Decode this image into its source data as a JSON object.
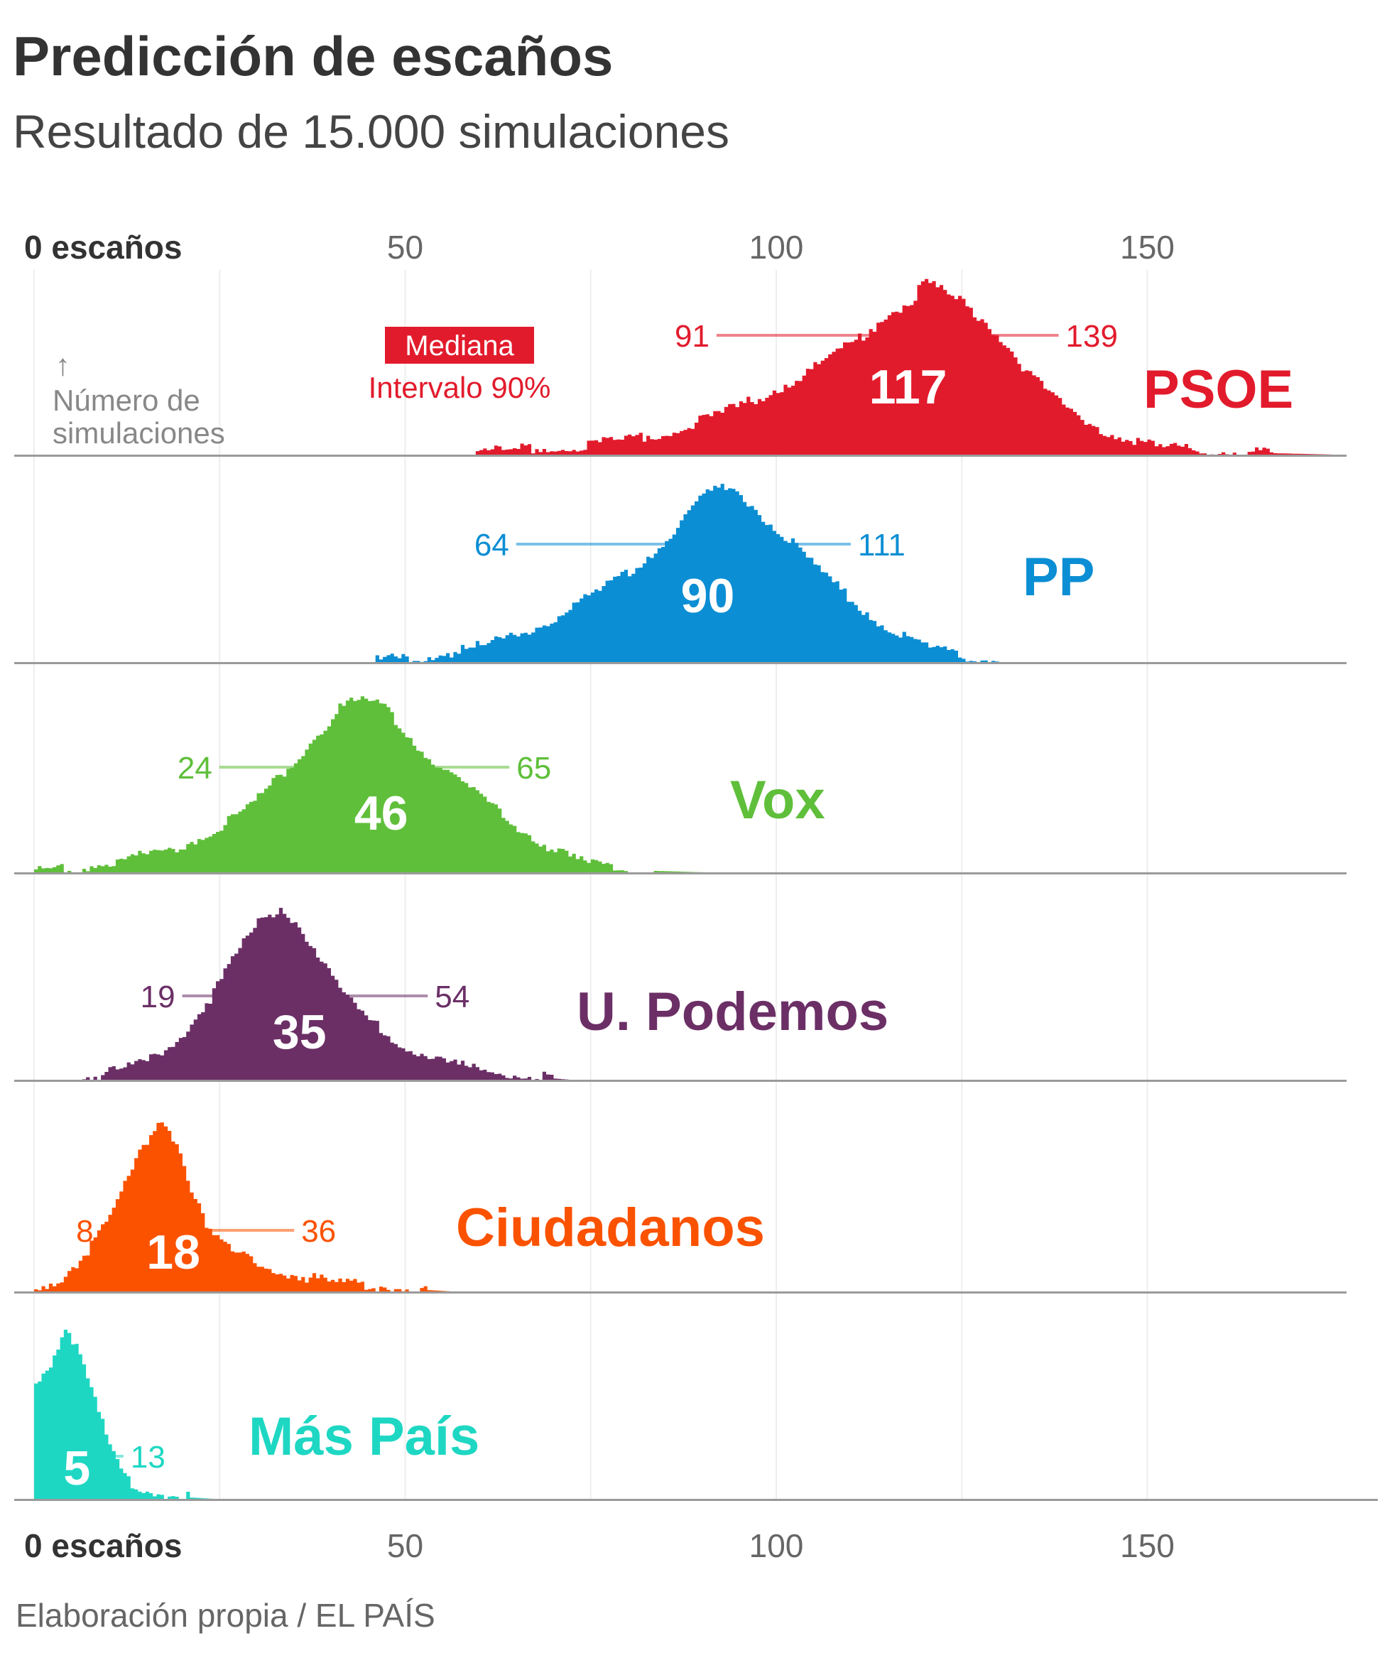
{
  "title": "Predicción de escaños",
  "subtitle": "Resultado de 15.000 simulaciones",
  "source": "Elaboración propia / EL PAÍS",
  "axis": {
    "zero_label": "0 escaños",
    "ticks": [
      "50",
      "100",
      "150"
    ],
    "tick_values": [
      50,
      100,
      150
    ],
    "y_note_arrow": "↑",
    "y_note_line1": "Número de",
    "y_note_line2": "simulaciones"
  },
  "legend": {
    "median_label": "Mediana",
    "interval_label": "Intervalo 90%",
    "color": "#e21b2c"
  },
  "chart_data": {
    "type": "histogram",
    "x_unit": "escaños",
    "xlim": [
      0,
      180
    ],
    "grid": true,
    "series": [
      {
        "name": "PSOE",
        "color": "#e21b2c",
        "median": 117,
        "interval": [
          91,
          139
        ],
        "median_label": "117",
        "low_label": "91",
        "high_label": "139",
        "range": [
          56,
          175
        ],
        "peak": 120,
        "peak_height": 1.0,
        "density": [
          [
            56,
            0.01
          ],
          [
            60,
            0.02
          ],
          [
            65,
            0.03
          ],
          [
            70,
            0.04
          ],
          [
            75,
            0.06
          ],
          [
            80,
            0.09
          ],
          [
            85,
            0.13
          ],
          [
            90,
            0.2
          ],
          [
            95,
            0.28
          ],
          [
            100,
            0.38
          ],
          [
            105,
            0.5
          ],
          [
            110,
            0.64
          ],
          [
            113,
            0.74
          ],
          [
            115,
            0.82
          ],
          [
            118,
            0.88
          ],
          [
            120,
            1.0
          ],
          [
            122,
            0.94
          ],
          [
            125,
            0.87
          ],
          [
            128,
            0.76
          ],
          [
            131,
            0.62
          ],
          [
            134,
            0.46
          ],
          [
            137,
            0.33
          ],
          [
            140,
            0.23
          ],
          [
            144,
            0.14
          ],
          [
            148,
            0.07
          ],
          [
            152,
            0.04
          ],
          [
            158,
            0.02
          ],
          [
            165,
            0.01
          ],
          [
            175,
            0.0
          ]
        ]
      },
      {
        "name": "PP",
        "color": "#0b8ed4",
        "median": 90,
        "interval": [
          64,
          111
        ],
        "median_label": "90",
        "low_label": "64",
        "high_label": "111",
        "range": [
          46,
          130
        ],
        "peak": 92,
        "peak_height": 1.0,
        "density": [
          [
            46,
            0.01
          ],
          [
            50,
            0.02
          ],
          [
            55,
            0.05
          ],
          [
            60,
            0.09
          ],
          [
            65,
            0.16
          ],
          [
            70,
            0.26
          ],
          [
            75,
            0.38
          ],
          [
            80,
            0.52
          ],
          [
            84,
            0.66
          ],
          [
            87,
            0.82
          ],
          [
            90,
            0.96
          ],
          [
            92,
            1.0
          ],
          [
            95,
            0.96
          ],
          [
            98,
            0.84
          ],
          [
            101,
            0.72
          ],
          [
            104,
            0.6
          ],
          [
            107,
            0.47
          ],
          [
            110,
            0.36
          ],
          [
            113,
            0.25
          ],
          [
            116,
            0.16
          ],
          [
            120,
            0.08
          ],
          [
            124,
            0.04
          ],
          [
            130,
            0.0
          ]
        ]
      },
      {
        "name": "Vox",
        "color": "#5fbf3a",
        "median": 46,
        "interval": [
          24,
          65
        ],
        "median_label": "46",
        "low_label": "24",
        "high_label": "65",
        "range": [
          0,
          90
        ],
        "peak": 44,
        "peak_height": 1.0,
        "density": [
          [
            0,
            0.01
          ],
          [
            5,
            0.02
          ],
          [
            10,
            0.05
          ],
          [
            15,
            0.1
          ],
          [
            20,
            0.16
          ],
          [
            25,
            0.26
          ],
          [
            30,
            0.42
          ],
          [
            35,
            0.64
          ],
          [
            38,
            0.8
          ],
          [
            41,
            0.94
          ],
          [
            44,
            1.0
          ],
          [
            47,
            0.94
          ],
          [
            50,
            0.8
          ],
          [
            53,
            0.66
          ],
          [
            56,
            0.56
          ],
          [
            59,
            0.46
          ],
          [
            62,
            0.36
          ],
          [
            65,
            0.26
          ],
          [
            68,
            0.17
          ],
          [
            72,
            0.08
          ],
          [
            76,
            0.03
          ],
          [
            82,
            0.01
          ],
          [
            90,
            0.0
          ]
        ]
      },
      {
        "name": "U. Podemos",
        "color": "#6b2f66",
        "median": 35,
        "interval": [
          19,
          54
        ],
        "median_label": "35",
        "low_label": "19",
        "high_label": "54",
        "range": [
          5,
          72
        ],
        "peak": 33,
        "peak_height": 1.0,
        "density": [
          [
            5,
            0.01
          ],
          [
            10,
            0.04
          ],
          [
            15,
            0.1
          ],
          [
            20,
            0.26
          ],
          [
            24,
            0.5
          ],
          [
            27,
            0.72
          ],
          [
            30,
            0.9
          ],
          [
            33,
            1.0
          ],
          [
            36,
            0.86
          ],
          [
            39,
            0.66
          ],
          [
            42,
            0.46
          ],
          [
            45,
            0.34
          ],
          [
            48,
            0.24
          ],
          [
            51,
            0.17
          ],
          [
            55,
            0.1
          ],
          [
            60,
            0.05
          ],
          [
            66,
            0.02
          ],
          [
            72,
            0.0
          ]
        ]
      },
      {
        "name": "Ciudadanos",
        "color": "#fb5200",
        "median": 18,
        "interval": [
          8,
          36
        ],
        "median_label": "18",
        "low_label": "8",
        "high_label": "36",
        "range": [
          0,
          56
        ],
        "peak": 17,
        "peak_height": 1.0,
        "density": [
          [
            0,
            0.03
          ],
          [
            3,
            0.06
          ],
          [
            6,
            0.18
          ],
          [
            9,
            0.36
          ],
          [
            12,
            0.6
          ],
          [
            14,
            0.78
          ],
          [
            16,
            0.95
          ],
          [
            17,
            1.0
          ],
          [
            19,
            0.86
          ],
          [
            21,
            0.6
          ],
          [
            23,
            0.36
          ],
          [
            26,
            0.24
          ],
          [
            30,
            0.16
          ],
          [
            34,
            0.1
          ],
          [
            40,
            0.05
          ],
          [
            46,
            0.03
          ],
          [
            52,
            0.01
          ],
          [
            56,
            0.0
          ]
        ]
      },
      {
        "name": "Más País",
        "color": "#1ed7c3",
        "median": 5,
        "interval": [
          0,
          13
        ],
        "median_label": "5",
        "low_label": "",
        "high_label": "13",
        "range": [
          0,
          24
        ],
        "peak": 4,
        "peak_height": 1.0,
        "density": [
          [
            0,
            0.68
          ],
          [
            2,
            0.78
          ],
          [
            4,
            1.0
          ],
          [
            6,
            0.82
          ],
          [
            8,
            0.56
          ],
          [
            10,
            0.3
          ],
          [
            12,
            0.13
          ],
          [
            14,
            0.06
          ],
          [
            17,
            0.03
          ],
          [
            20,
            0.01
          ],
          [
            24,
            0.0
          ]
        ]
      }
    ]
  }
}
